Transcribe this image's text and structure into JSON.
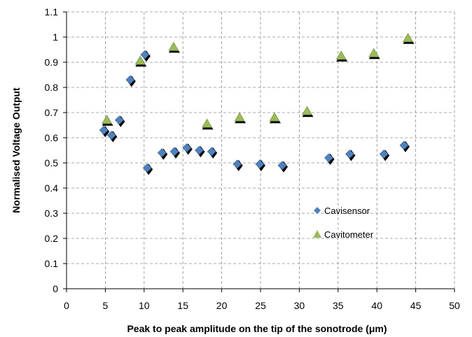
{
  "chart_data": {
    "type": "scatter",
    "xlabel": "Peak to peak amplitude on the tip of the sonotrode (μm)",
    "ylabel": "Normalised Voltage Output",
    "xlim": [
      0,
      50
    ],
    "ylim": [
      0,
      1.1
    ],
    "x_ticks": [
      "0",
      "5",
      "10",
      "15",
      "20",
      "25",
      "30",
      "35",
      "40",
      "45",
      "50"
    ],
    "y_ticks": [
      "0",
      "0.1",
      "0.2",
      "0.3",
      "0.4",
      "0.5",
      "0.6",
      "0.7",
      "0.8",
      "0.9",
      "1",
      "1.1"
    ],
    "grid": true,
    "legend_position": "center-right",
    "series": [
      {
        "name": "Cavisensor",
        "marker": "diamond",
        "color": "#4f81bd",
        "points": [
          [
            4.8,
            0.63
          ],
          [
            5.8,
            0.61
          ],
          [
            6.8,
            0.67
          ],
          [
            8.2,
            0.83
          ],
          [
            10.1,
            0.93
          ],
          [
            10.4,
            0.48
          ],
          [
            12.3,
            0.54
          ],
          [
            13.9,
            0.545
          ],
          [
            15.5,
            0.56
          ],
          [
            17.1,
            0.55
          ],
          [
            18.7,
            0.545
          ],
          [
            22.0,
            0.495
          ],
          [
            24.9,
            0.495
          ],
          [
            27.8,
            0.49
          ],
          [
            33.8,
            0.52
          ],
          [
            36.5,
            0.535
          ],
          [
            40.9,
            0.535
          ],
          [
            43.5,
            0.57
          ]
        ]
      },
      {
        "name": "Cavitometer",
        "marker": "triangle",
        "color": "#9bbb59",
        "points": [
          [
            5.2,
            0.67
          ],
          [
            9.5,
            0.905
          ],
          [
            13.8,
            0.96
          ],
          [
            18.1,
            0.655
          ],
          [
            22.3,
            0.68
          ],
          [
            26.8,
            0.68
          ],
          [
            31.0,
            0.705
          ],
          [
            35.4,
            0.925
          ],
          [
            39.6,
            0.935
          ],
          [
            44.0,
            0.995
          ]
        ]
      }
    ]
  }
}
